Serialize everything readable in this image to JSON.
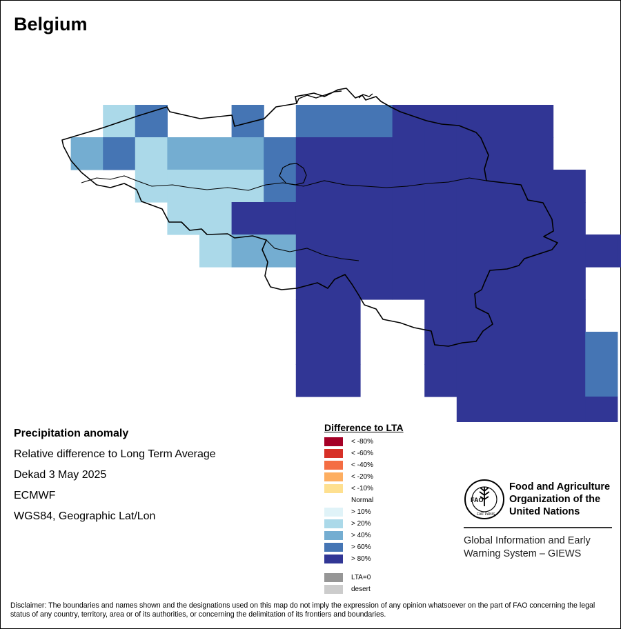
{
  "map_title": "Belgium",
  "info": {
    "line1": "Precipitation anomaly",
    "line2": "Relative difference to Long Term Average",
    "line3": "Dekad 3 May 2025",
    "line4": "ECMWF",
    "line5": "WGS84, Geographic Lat/Lon"
  },
  "legend": {
    "title": "Difference to LTA",
    "items": [
      {
        "label": "< -80%",
        "color": "#a50026"
      },
      {
        "label": "< -60%",
        "color": "#d73027"
      },
      {
        "label": "< -40%",
        "color": "#f46d43"
      },
      {
        "label": "< -20%",
        "color": "#fdae61"
      },
      {
        "label": "< -10%",
        "color": "#fee090"
      },
      {
        "label": "Normal",
        "color": "#ffffff"
      },
      {
        "label": "> 10%",
        "color": "#e0f3f8"
      },
      {
        "label": "> 20%",
        "color": "#abd9e9"
      },
      {
        "label": "> 40%",
        "color": "#74add1"
      },
      {
        "label": "> 60%",
        "color": "#4575b4"
      },
      {
        "label": "> 80%",
        "color": "#313695"
      },
      {
        "label": "LTA=0",
        "color": "#969696"
      },
      {
        "label": "desert",
        "color": "#cccccc"
      }
    ]
  },
  "anomaly_grid": {
    "classes": {
      "a": "#abd9e9",
      "b": "#74add1",
      "c": "#4575b4",
      "d": "#313695"
    },
    "rows": [
      "..ac..c.cccddddd..",
      ".bcabbbcdddddddd..",
      "...aaaacddddddddd.",
      "....aaddddddddddd.",
      ".....abbddddddddddd",
      "........ddddddddd..",
      "........dd..ddddd..",
      "........dd..dddddc.",
      "........dd..dddddc.",
      ".............ddddd.."
    ]
  },
  "organization": {
    "name_line1": "Food and Agriculture",
    "name_line2": "Organization of the",
    "name_line3": "United Nations",
    "emblem_text": "FAO",
    "emblem_motto": "FIAT PANIS",
    "program_line1": "Global Information and Early",
    "program_line2": "Warning System – GIEWS"
  },
  "disclaimer": "Disclaimer: The boundaries and names shown and the designations used on this map do not imply the expression of any opinion whatsoever on the part of FAO concerning the legal status of any country, territory, area or of its authorities, or concerning the delimitation of its frontiers and boundaries."
}
